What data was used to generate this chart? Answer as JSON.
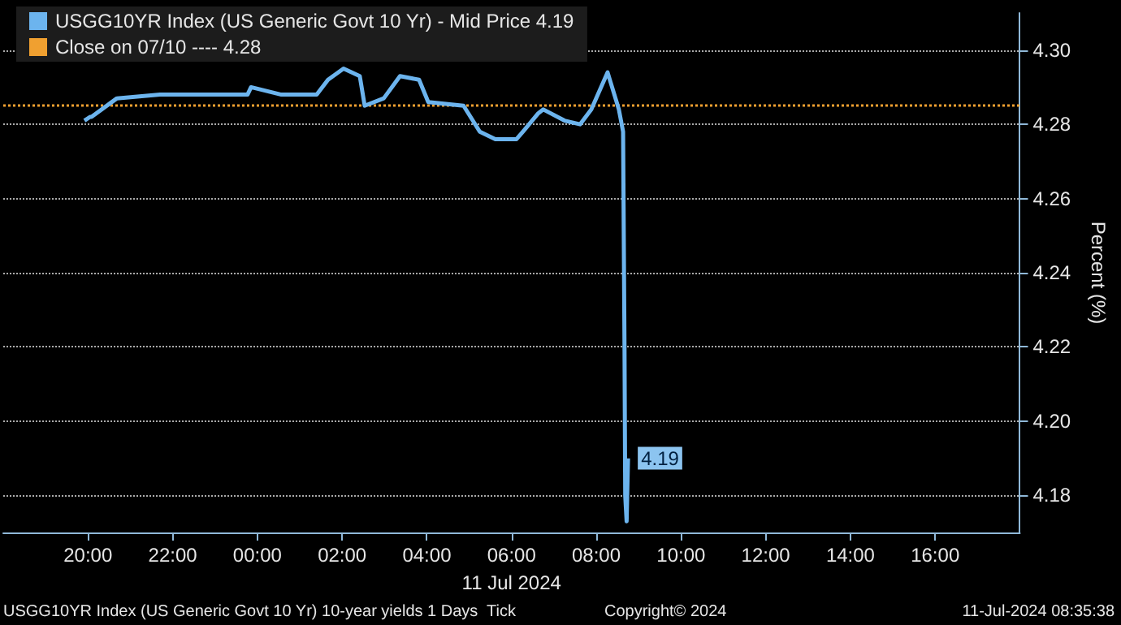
{
  "chart_data": {
    "type": "line",
    "xlabel": "11 Jul 2024",
    "ylabel": "Percent (%)",
    "x": [
      "2024-07-10T19:55",
      "2024-07-10T20:03",
      "2024-07-10T20:05",
      "2024-07-10T20:41",
      "2024-07-10T21:42",
      "2024-07-10T23:46",
      "2024-07-10T23:51",
      "2024-07-11T00:34",
      "2024-07-11T01:24",
      "2024-07-11T01:40",
      "2024-07-11T02:02",
      "2024-07-11T02:25",
      "2024-07-11T02:32",
      "2024-07-11T02:59",
      "2024-07-11T03:22",
      "2024-07-11T03:49",
      "2024-07-11T04:02",
      "2024-07-11T04:52",
      "2024-07-11T05:15",
      "2024-07-11T05:37",
      "2024-07-11T06:07",
      "2024-07-11T06:16",
      "2024-07-11T06:38",
      "2024-07-11T06:45",
      "2024-07-11T07:15",
      "2024-07-11T07:37",
      "2024-07-11T07:53",
      "2024-07-11T08:16",
      "2024-07-11T08:32",
      "2024-07-11T08:38",
      "2024-07-11T08:40",
      "2024-07-11T08:41",
      "2024-07-11T08:43",
      "2024-07-11T08:45"
    ],
    "series": [
      {
        "name": "USGG10YR Index (US Generic Govt 10 Yr) - Mid Price 4.19",
        "color": "#6cb4ee",
        "values": [
          4.281,
          4.282,
          4.282,
          4.287,
          4.288,
          4.288,
          4.29,
          4.288,
          4.288,
          4.292,
          4.295,
          4.293,
          4.285,
          4.287,
          4.293,
          4.292,
          4.286,
          4.285,
          4.278,
          4.276,
          4.276,
          4.278,
          4.283,
          4.284,
          4.281,
          4.28,
          4.284,
          4.294,
          4.284,
          4.278,
          4.22,
          4.18,
          4.173,
          4.19
        ]
      }
    ],
    "xlim": [
      "2024-07-10T18:00",
      "2024-07-11T18:00"
    ],
    "xticks": [
      {
        "value": "2024-07-10T20:00",
        "label": "20:00"
      },
      {
        "value": "2024-07-10T22:00",
        "label": "22:00"
      },
      {
        "value": "2024-07-11T00:00",
        "label": "00:00"
      },
      {
        "value": "2024-07-11T02:00",
        "label": "02:00"
      },
      {
        "value": "2024-07-11T04:00",
        "label": "04:00"
      },
      {
        "value": "2024-07-11T06:00",
        "label": "06:00"
      },
      {
        "value": "2024-07-11T08:00",
        "label": "08:00"
      },
      {
        "value": "2024-07-11T10:00",
        "label": "10:00"
      },
      {
        "value": "2024-07-11T12:00",
        "label": "12:00"
      },
      {
        "value": "2024-07-11T14:00",
        "label": "14:00"
      },
      {
        "value": "2024-07-11T16:00",
        "label": "16:00"
      }
    ],
    "ylim": [
      4.17,
      4.31
    ],
    "yticks": [
      4.18,
      {
        "value": 4.2,
        "label": "4.20"
      },
      4.22,
      4.24,
      4.26,
      4.28,
      {
        "value": 4.3,
        "label": "4.30"
      }
    ],
    "ref_lines": [
      {
        "axis": "y",
        "value": 4.285,
        "label": "Close on 07/10 ---- 4.28",
        "color": "#f0a030",
        "line_style": "dotted"
      }
    ],
    "annotations": [
      {
        "text": "4.19",
        "x": "2024-07-11T08:45",
        "y": 4.19
      },
      "USGG10YR Index (US Generic Govt 10 Yr) 10-year yields 1 Days  Tick",
      "Copyright© 2024",
      "11-Jul-2024 08:35:38"
    ],
    "grid": "y",
    "legend": "top left",
    "line_style": "solid",
    "marker": "none"
  }
}
